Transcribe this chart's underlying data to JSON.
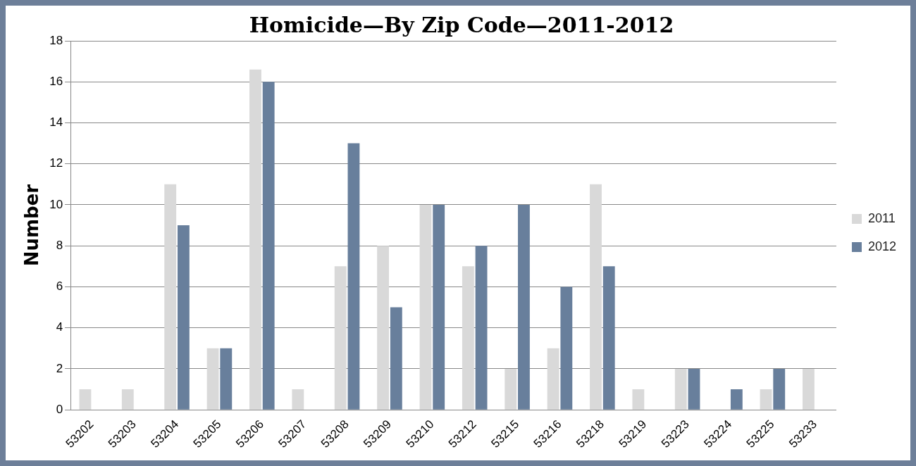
{
  "chart_data": {
    "type": "bar",
    "title": "Homicide—By Zip Code—2011-2012",
    "ylabel": "Number",
    "categories": [
      "53202",
      "53203",
      "53204",
      "53205",
      "53206",
      "53207",
      "53208",
      "53209",
      "53210",
      "53212",
      "53215",
      "53216",
      "53218",
      "53219",
      "53223",
      "53224",
      "53225",
      "53233"
    ],
    "series": [
      {
        "name": "2011",
        "color": "#d9d9d9",
        "values": [
          1,
          1,
          11,
          3,
          16.6,
          1,
          7,
          8,
          10,
          7,
          2,
          3,
          11,
          1,
          2,
          0,
          1,
          2
        ]
      },
      {
        "name": "2012",
        "color": "#687f9c",
        "values": [
          0,
          0,
          9,
          3,
          16,
          0,
          13,
          5,
          10,
          8,
          10,
          6,
          7,
          0,
          2,
          1,
          2,
          0
        ]
      }
    ],
    "ylim": [
      0,
      18
    ],
    "yticks": [
      0,
      2,
      4,
      6,
      8,
      10,
      12,
      14,
      16,
      18
    ],
    "grid": "y",
    "legend": "right"
  }
}
